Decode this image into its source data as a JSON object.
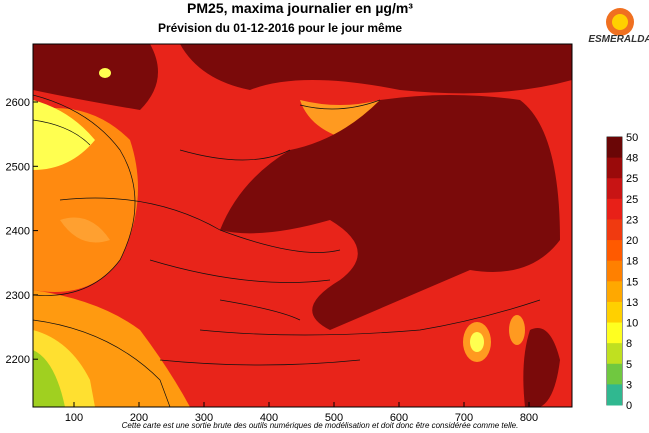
{
  "header": {
    "title": "PM25, maxima journalier en µg/m³",
    "subtitle": "Prévision du 01-12-2016 pour le jour même"
  },
  "logo": "ESMERALDA",
  "axes": {
    "x_ticks": [
      "100",
      "200",
      "300",
      "400",
      "500",
      "600",
      "700",
      "800"
    ],
    "y_ticks": [
      "2600",
      "2500",
      "2400",
      "2300",
      "2200"
    ]
  },
  "colorbar": {
    "labels": [
      "50",
      "48",
      "25",
      "25",
      "23",
      "20",
      "18",
      "15",
      "13",
      "10",
      "8",
      "5",
      "3",
      "0"
    ]
  },
  "footer": "Cette carte est une sortie brute des outils numériques de modélisation et doit donc être considérée comme telle."
}
